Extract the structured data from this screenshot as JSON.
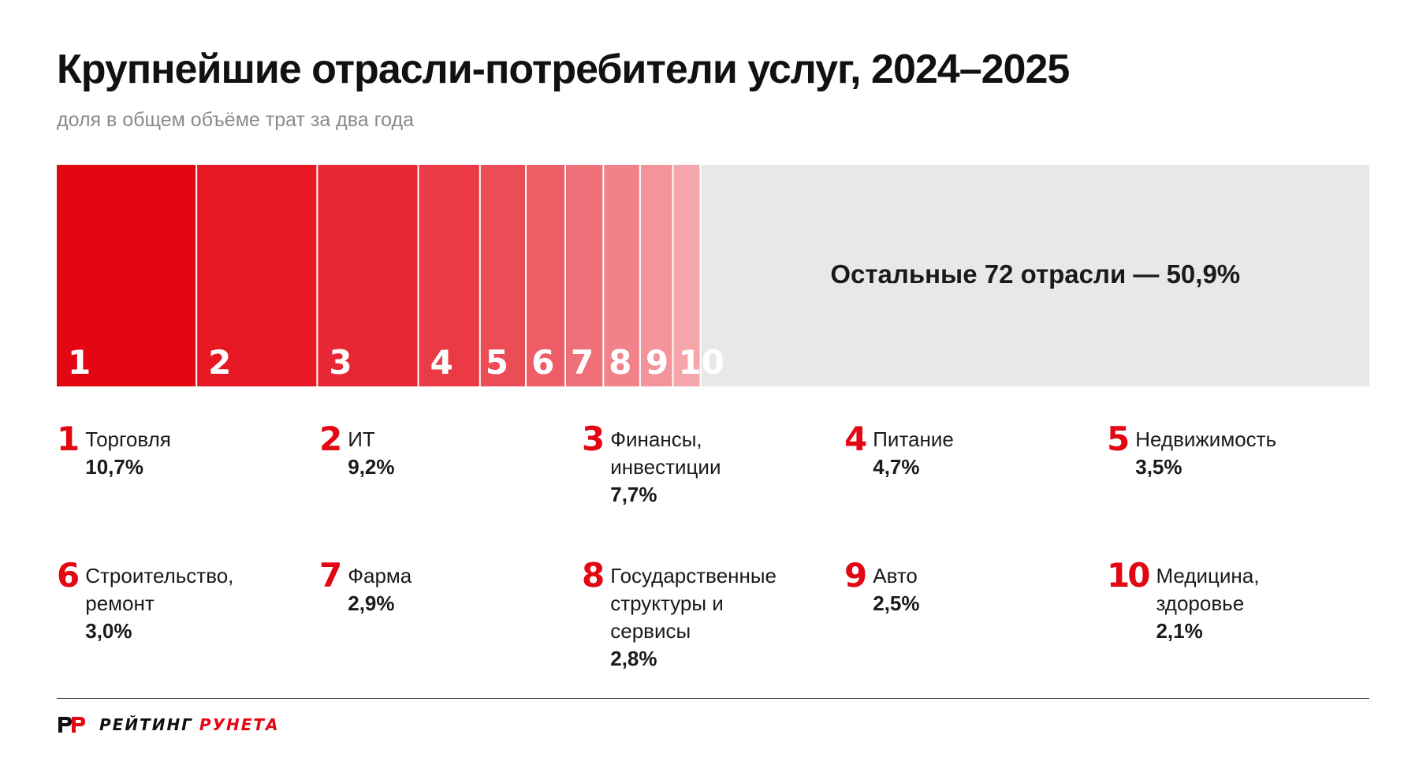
{
  "header": {
    "title": "Крупнейшие отрасли-потребители услуг, 2024–2025",
    "subtitle": "доля в общем объёме трат за два года"
  },
  "colors": {
    "accent": "#e30613",
    "rest": "#e8e8e8",
    "segments": [
      "#e30613",
      "#e51824",
      "#e72834",
      "#e93a45",
      "#eb4c56",
      "#ed5e67",
      "#ef7078",
      "#f18289",
      "#f3949a",
      "#f5a6ab"
    ]
  },
  "chart_data": {
    "type": "bar",
    "title": "Крупнейшие отрасли-потребители услуг, 2024–2025",
    "subtitle": "доля в общем объёме трат за два года",
    "unit": "%",
    "categories": [
      "Торговля",
      "ИТ",
      "Финансы, инвестиции",
      "Питание",
      "Недвижимость",
      "Строительство, ремонт",
      "Фарма",
      "Государственные структуры и сервисы",
      "Авто",
      "Медицина, здоровье"
    ],
    "ranks": [
      "1",
      "2",
      "3",
      "4",
      "5",
      "6",
      "7",
      "8",
      "9",
      "10"
    ],
    "values": [
      10.7,
      9.2,
      7.7,
      4.7,
      3.5,
      3.0,
      2.9,
      2.8,
      2.5,
      2.1
    ],
    "value_labels": [
      "10,7%",
      "9,2%",
      "7,7%",
      "4,7%",
      "3,5%",
      "3,0%",
      "2,9%",
      "2,8%",
      "2,5%",
      "2,1%"
    ],
    "rest": {
      "value": 50.9,
      "label": "Остальные 72 отрасли — 50,9%"
    }
  },
  "legend": {
    "rows": [
      [
        {
          "num": "1",
          "name": "Торговля",
          "value": "10,7%"
        },
        {
          "num": "2",
          "name": "ИТ",
          "value": "9,2%"
        },
        {
          "num": "3",
          "name": "Финансы,\nинвестиции",
          "value": "7,7%"
        },
        {
          "num": "4",
          "name": "Питание",
          "value": "4,7%"
        },
        {
          "num": "5",
          "name": "Недвижимость",
          "value": "3,5%"
        }
      ],
      [
        {
          "num": "6",
          "name": "Строительство,\nремонт",
          "value": "3,0%"
        },
        {
          "num": "7",
          "name": "Фарма",
          "value": "2,9%"
        },
        {
          "num": "8",
          "name": "Государственные\nструктуры и\nсервисы",
          "value": "2,8%"
        },
        {
          "num": "9",
          "name": "Авто",
          "value": "2,5%"
        },
        {
          "num": "10",
          "name": "Медицина,\nздоровье",
          "value": "2,1%"
        }
      ]
    ]
  },
  "footer": {
    "logo_word1": "РЕЙТИНГ",
    "logo_word2": "РУНЕТА"
  }
}
